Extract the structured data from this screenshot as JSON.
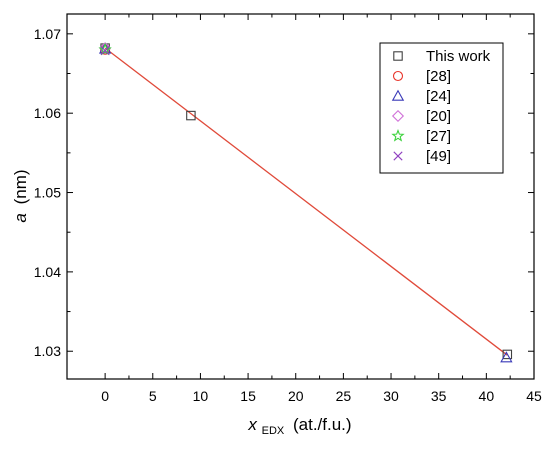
{
  "chart_data": {
    "type": "scatter",
    "xlabel_main": "x",
    "xlabel_sub": "EDX",
    "xlabel_unit": "(at./f.u.)",
    "ylabel_main": "a",
    "ylabel_unit": "(nm)",
    "xlim": [
      -4,
      45
    ],
    "ylim": [
      1.0265,
      1.0725
    ],
    "xticks": [
      0,
      5,
      10,
      15,
      20,
      25,
      30,
      35,
      40,
      45
    ],
    "yticks": [
      1.03,
      1.04,
      1.05,
      1.06,
      1.07
    ],
    "ytick_labels": [
      "1.03",
      "1.04",
      "1.05",
      "1.06",
      "1.07"
    ],
    "grid": false,
    "legend_position": "top-right",
    "fit_line": {
      "x": [
        0,
        42.2
      ],
      "y": [
        1.0682,
        1.0295
      ],
      "color": "#e04a3a"
    },
    "series": [
      {
        "name": "This work",
        "marker": "square",
        "color": "#404040",
        "points": [
          {
            "x": 0,
            "y": 1.0682
          },
          {
            "x": 9,
            "y": 1.0597
          },
          {
            "x": 42.2,
            "y": 1.0296
          }
        ]
      },
      {
        "name": "[28]",
        "marker": "circle",
        "color": "#e8342a",
        "points": [
          {
            "x": 0,
            "y": 1.068
          }
        ]
      },
      {
        "name": "[24]",
        "marker": "triangle",
        "color": "#3a3ab8",
        "points": [
          {
            "x": 0,
            "y": 1.0681
          },
          {
            "x": 42.1,
            "y": 1.0292
          }
        ]
      },
      {
        "name": "[20]",
        "marker": "diamond",
        "color": "#d070d8",
        "points": [
          {
            "x": 0,
            "y": 1.0682
          }
        ]
      },
      {
        "name": "[27]",
        "marker": "star",
        "color": "#3cd23c",
        "points": [
          {
            "x": 0,
            "y": 1.068
          }
        ]
      },
      {
        "name": "[49]",
        "marker": "cross",
        "color": "#9040c0",
        "points": [
          {
            "x": 0,
            "y": 1.0679
          }
        ]
      }
    ]
  }
}
